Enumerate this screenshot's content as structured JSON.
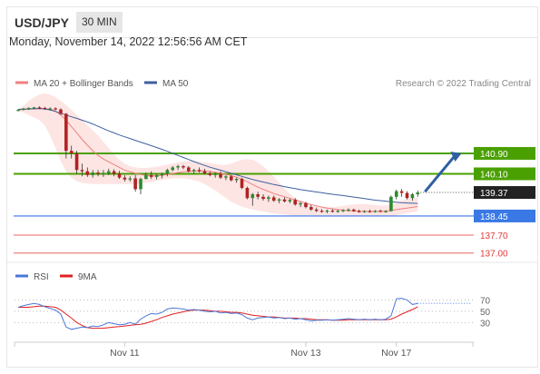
{
  "header": {
    "symbol": "USD/JPY",
    "timeframe": "30 MIN"
  },
  "date_text": "Monday, November 14, 2022 12:56:56 AM CET",
  "credit": "Research © 2022 Trading Central",
  "colors": {
    "ma20": "#f08080",
    "ma50": "#3f5f9f",
    "bollinger": "#fde0de",
    "candle_up": "#2e8b2e",
    "candle_down": "#b22222",
    "resistance": "#4aa000",
    "support": "#3a78e6",
    "support2": "#f08080",
    "rsi": "#4a78d8",
    "rsi9": "#e02020"
  },
  "chart_data": [
    {
      "type": "candlestick",
      "legend": [
        {
          "name": "MA 20 + Bollinger Bands",
          "color": "#f08080"
        },
        {
          "name": "MA 50",
          "color": "#3f5f9f"
        }
      ],
      "ylim": [
        136.6,
        143.35
      ],
      "x": [
        0,
        1,
        2,
        3,
        4,
        5,
        6,
        7,
        8,
        9,
        10,
        11,
        12,
        13,
        14,
        15,
        16,
        17,
        18,
        19,
        20,
        21,
        22,
        23,
        24,
        25,
        26,
        27,
        28,
        29,
        30,
        31,
        32,
        33,
        34,
        35,
        36,
        37,
        38,
        39,
        40,
        41,
        42,
        43,
        44,
        45,
        46,
        47,
        48,
        49,
        50,
        51,
        52,
        53,
        54,
        55,
        56,
        57,
        58,
        59,
        60,
        61,
        62,
        63,
        64,
        65,
        66,
        67,
        68,
        69,
        70,
        71,
        72,
        73,
        74,
        75
      ],
      "ohlc": [
        [
          142.58,
          142.62,
          142.55,
          142.6
        ],
        [
          142.6,
          142.68,
          142.58,
          142.65
        ],
        [
          142.65,
          142.7,
          142.6,
          142.68
        ],
        [
          142.68,
          142.72,
          142.63,
          142.7
        ],
        [
          142.7,
          142.74,
          142.64,
          142.68
        ],
        [
          142.68,
          142.72,
          142.6,
          142.65
        ],
        [
          142.65,
          142.7,
          142.58,
          142.66
        ],
        [
          142.66,
          142.7,
          142.58,
          142.62
        ],
        [
          142.62,
          142.66,
          142.4,
          142.45
        ],
        [
          142.45,
          142.48,
          140.7,
          141.0
        ],
        [
          141.0,
          141.2,
          140.7,
          140.9
        ],
        [
          140.9,
          141.0,
          140.1,
          140.25
        ],
        [
          140.25,
          140.5,
          140.0,
          140.2
        ],
        [
          140.2,
          140.35,
          139.98,
          140.05
        ],
        [
          140.05,
          140.25,
          139.95,
          140.15
        ],
        [
          140.15,
          140.25,
          140.0,
          140.1
        ],
        [
          140.1,
          140.25,
          139.98,
          140.12
        ],
        [
          140.12,
          140.3,
          140.05,
          140.2
        ],
        [
          140.2,
          140.28,
          140.0,
          140.1
        ],
        [
          140.1,
          140.22,
          139.9,
          139.95
        ],
        [
          139.95,
          140.05,
          139.8,
          139.88
        ],
        [
          139.88,
          140.0,
          139.8,
          139.92
        ],
        [
          139.92,
          140.05,
          139.4,
          139.5
        ],
        [
          139.5,
          139.95,
          139.3,
          139.9
        ],
        [
          139.9,
          140.15,
          139.88,
          140.05
        ],
        [
          140.05,
          140.2,
          139.9,
          139.98
        ],
        [
          139.98,
          140.1,
          139.88,
          140.05
        ],
        [
          140.05,
          140.15,
          139.92,
          140.1
        ],
        [
          140.1,
          140.3,
          140.0,
          140.25
        ],
        [
          140.25,
          140.4,
          140.2,
          140.35
        ],
        [
          140.35,
          140.45,
          140.25,
          140.4
        ],
        [
          140.4,
          140.45,
          140.28,
          140.35
        ],
        [
          140.35,
          140.4,
          140.15,
          140.2
        ],
        [
          140.2,
          140.3,
          140.1,
          140.25
        ],
        [
          140.25,
          140.35,
          140.15,
          140.2
        ],
        [
          140.2,
          140.3,
          140.08,
          140.12
        ],
        [
          140.12,
          140.2,
          140.0,
          140.05
        ],
        [
          140.05,
          140.15,
          139.95,
          140.1
        ],
        [
          140.1,
          140.2,
          139.9,
          139.95
        ],
        [
          139.95,
          140.05,
          139.85,
          140.0
        ],
        [
          140.0,
          140.05,
          139.8,
          139.85
        ],
        [
          139.85,
          139.95,
          139.75,
          139.9
        ],
        [
          139.9,
          139.95,
          139.5,
          139.55
        ],
        [
          139.55,
          139.6,
          139.1,
          139.15
        ],
        [
          139.15,
          139.35,
          138.85,
          139.3
        ],
        [
          139.3,
          139.4,
          139.1,
          139.2
        ],
        [
          139.2,
          139.3,
          139.05,
          139.12
        ],
        [
          139.12,
          139.25,
          139.0,
          139.18
        ],
        [
          139.18,
          139.25,
          139.0,
          139.05
        ],
        [
          139.05,
          139.15,
          138.95,
          139.1
        ],
        [
          139.1,
          139.18,
          138.98,
          139.02
        ],
        [
          139.02,
          139.12,
          138.95,
          139.08
        ],
        [
          139.08,
          139.15,
          138.85,
          138.9
        ],
        [
          138.9,
          139.0,
          138.8,
          138.95
        ],
        [
          138.95,
          139.0,
          138.75,
          138.8
        ],
        [
          138.8,
          138.88,
          138.65,
          138.7
        ],
        [
          138.7,
          138.78,
          138.6,
          138.65
        ],
        [
          138.65,
          138.72,
          138.58,
          138.62
        ],
        [
          138.62,
          138.7,
          138.56,
          138.66
        ],
        [
          138.66,
          138.72,
          138.58,
          138.62
        ],
        [
          138.62,
          138.7,
          138.58,
          138.65
        ],
        [
          138.65,
          138.72,
          138.6,
          138.68
        ],
        [
          138.68,
          138.75,
          138.62,
          138.7
        ],
        [
          138.7,
          138.74,
          138.6,
          138.64
        ],
        [
          138.64,
          138.7,
          138.58,
          138.62
        ],
        [
          138.62,
          138.68,
          138.58,
          138.64
        ],
        [
          138.64,
          138.7,
          138.58,
          138.62
        ],
        [
          138.62,
          138.68,
          138.58,
          138.65
        ],
        [
          138.65,
          138.7,
          138.6,
          138.63
        ],
        [
          138.63,
          138.68,
          138.58,
          138.64
        ],
        [
          138.64,
          139.25,
          138.62,
          139.2
        ],
        [
          139.2,
          139.48,
          139.1,
          139.42
        ],
        [
          139.42,
          139.5,
          139.2,
          139.35
        ],
        [
          139.35,
          139.42,
          139.1,
          139.15
        ],
        [
          139.15,
          139.35,
          139.05,
          139.3
        ],
        [
          139.3,
          139.45,
          139.2,
          139.37
        ]
      ],
      "ma20": [
        142.6,
        142.62,
        142.63,
        142.64,
        142.65,
        142.65,
        142.63,
        142.55,
        142.4,
        142.2,
        141.95,
        141.7,
        141.45,
        141.22,
        141.0,
        140.82,
        140.68,
        140.57,
        140.46,
        140.35,
        140.25,
        140.18,
        140.12,
        140.07,
        140.04,
        140.02,
        140.02,
        140.04,
        140.07,
        140.11,
        140.15,
        140.18,
        140.2,
        140.21,
        140.22,
        140.21,
        140.19,
        140.16,
        140.12,
        140.08,
        140.03,
        139.97,
        139.89,
        139.79,
        139.68,
        139.58,
        139.49,
        139.41,
        139.33,
        139.26,
        139.2,
        139.14,
        139.08,
        139.02,
        138.96,
        138.9,
        138.85,
        138.8,
        138.76,
        138.73,
        138.7,
        138.68,
        138.66,
        138.65,
        138.64,
        138.63,
        138.63,
        138.63,
        138.63,
        138.64,
        138.66,
        138.7,
        138.73,
        138.76,
        138.79,
        138.82
      ],
      "bb_upper": [
        142.65,
        142.75,
        142.95,
        143.1,
        143.2,
        143.25,
        143.2,
        143.1,
        142.95,
        142.8,
        142.6,
        142.4,
        142.2,
        142.0,
        141.8,
        141.6,
        141.35,
        141.1,
        140.85,
        140.65,
        140.5,
        140.4,
        140.35,
        140.33,
        140.33,
        140.35,
        140.38,
        140.42,
        140.46,
        140.5,
        140.55,
        140.58,
        140.6,
        140.6,
        140.58,
        140.55,
        140.52,
        140.48,
        140.45,
        140.45,
        140.5,
        140.58,
        140.65,
        140.68,
        140.65,
        140.55,
        140.4,
        140.2,
        139.98,
        139.75,
        139.52,
        139.32,
        139.15,
        139.02,
        138.93,
        138.88,
        138.85,
        138.82,
        138.8,
        138.8,
        138.82,
        138.85,
        138.88,
        138.9,
        138.92,
        138.92,
        138.9,
        138.88,
        138.86,
        138.86,
        138.88,
        138.95,
        139.05,
        139.12,
        139.15,
        139.18
      ],
      "bb_lower": [
        142.55,
        142.5,
        142.4,
        142.3,
        142.2,
        142.0,
        141.6,
        141.1,
        140.6,
        140.2,
        139.95,
        139.8,
        139.75,
        139.72,
        139.7,
        139.7,
        139.7,
        139.7,
        139.7,
        139.7,
        139.7,
        139.7,
        139.7,
        139.72,
        139.75,
        139.78,
        139.82,
        139.86,
        139.9,
        139.92,
        139.93,
        139.92,
        139.9,
        139.85,
        139.8,
        139.7,
        139.58,
        139.45,
        139.3,
        139.15,
        139.0,
        138.9,
        138.82,
        138.75,
        138.7,
        138.66,
        138.62,
        138.58,
        138.55,
        138.52,
        138.5,
        138.48,
        138.46,
        138.45,
        138.44,
        138.43,
        138.42,
        138.42,
        138.42,
        138.42,
        138.42,
        138.42,
        138.42,
        138.43,
        138.44,
        138.44,
        138.44,
        138.44,
        138.44,
        138.44,
        138.45,
        138.48,
        138.52,
        138.56,
        138.6,
        138.64
      ],
      "ma50": [
        142.62,
        142.63,
        142.64,
        142.65,
        142.65,
        142.64,
        142.6,
        142.54,
        142.47,
        142.4,
        142.33,
        142.27,
        142.2,
        142.13,
        142.05,
        141.96,
        141.87,
        141.78,
        141.7,
        141.62,
        141.55,
        141.48,
        141.41,
        141.34,
        141.27,
        141.2,
        141.13,
        141.06,
        140.98,
        140.9,
        140.82,
        140.74,
        140.66,
        140.58,
        140.5,
        140.43,
        140.36,
        140.3,
        140.24,
        140.18,
        140.12,
        140.06,
        140.0,
        139.94,
        139.88,
        139.83,
        139.78,
        139.73,
        139.68,
        139.64,
        139.6,
        139.56,
        139.52,
        139.48,
        139.45,
        139.42,
        139.39,
        139.36,
        139.33,
        139.3,
        139.27,
        139.25,
        139.22,
        139.19,
        139.16,
        139.13,
        139.1,
        139.07,
        139.05,
        139.03,
        139.01,
        138.99,
        138.97,
        138.96,
        138.95,
        138.94
      ],
      "levels": [
        {
          "value": 140.9,
          "label": "140.90",
          "role": "resistance",
          "color": "#4aa000"
        },
        {
          "value": 140.1,
          "label": "140.10",
          "role": "resistance",
          "color": "#4aa000"
        },
        {
          "value": 139.37,
          "label": "139.37",
          "role": "last",
          "color": "#222222"
        },
        {
          "value": 138.45,
          "label": "138.45",
          "role": "pivot",
          "color": "#3a78e6"
        },
        {
          "value": 137.7,
          "label": "137.70",
          "role": "support",
          "color": "#f08080"
        },
        {
          "value": 137.0,
          "label": "137.00",
          "role": "support",
          "color": "#f08080"
        }
      ],
      "forecast_arrow": {
        "from": [
          75,
          139.4
        ],
        "to": [
          81,
          140.9
        ]
      },
      "grid": false
    },
    {
      "type": "line",
      "legend": [
        {
          "name": "RSI",
          "color": "#4a78d8"
        },
        {
          "name": "9MA",
          "color": "#e02020"
        }
      ],
      "ylim": [
        0,
        90
      ],
      "yticks": [
        70,
        50,
        30
      ],
      "rsi": [
        57,
        60,
        62,
        64,
        62,
        58,
        55,
        52,
        45,
        22,
        18,
        20,
        22,
        21,
        24,
        23,
        26,
        30,
        28,
        26,
        27,
        30,
        27,
        36,
        42,
        46,
        45,
        48,
        54,
        56,
        55,
        54,
        52,
        53,
        52,
        50,
        49,
        50,
        47,
        48,
        46,
        47,
        44,
        38,
        35,
        38,
        39,
        40,
        38,
        39,
        37,
        38,
        36,
        37,
        35,
        33,
        34,
        34,
        35,
        34,
        35,
        36,
        37,
        36,
        35,
        36,
        35,
        36,
        35,
        36,
        42,
        72,
        73,
        70,
        62,
        64
      ],
      "ma9": [
        57,
        57,
        57,
        58,
        59,
        59,
        58,
        57,
        52,
        45,
        38,
        30,
        25,
        21,
        20,
        20,
        20,
        21,
        22,
        23,
        24,
        25,
        26,
        27,
        29,
        32,
        35,
        39,
        42,
        45,
        47,
        49,
        51,
        52,
        52,
        52,
        51,
        50,
        50,
        49,
        48,
        48,
        47,
        45,
        43,
        42,
        41,
        40,
        40,
        39,
        38,
        38,
        38,
        37,
        37,
        36,
        35,
        35,
        35,
        34,
        34,
        34,
        35,
        35,
        35,
        35,
        35,
        35,
        35,
        35,
        36,
        40,
        45,
        49,
        53,
        58
      ],
      "x_ticks": [
        {
          "x": 20,
          "label": "Nov 11"
        },
        {
          "x": 54,
          "label": "Nov 13"
        },
        {
          "x": 71,
          "label": "Nov 17"
        }
      ]
    }
  ]
}
